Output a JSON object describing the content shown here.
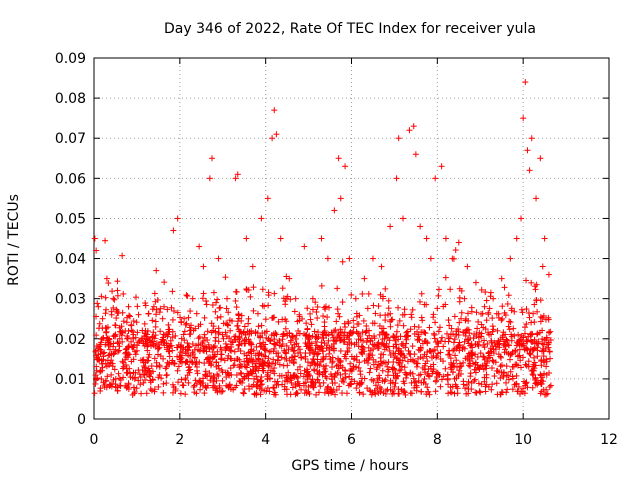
{
  "chart_data": {
    "type": "scatter",
    "title": "Day 346 of 2022, Rate Of TEC Index for receiver yula",
    "xlabel": "GPS time / hours",
    "ylabel": "ROTI / TECUs",
    "xlim": [
      0,
      12
    ],
    "ylim": [
      0,
      0.09
    ],
    "x_ticks": [
      "0",
      "2",
      "4",
      "6",
      "8",
      "10",
      "12"
    ],
    "y_ticks": [
      "0",
      "0.01",
      "0.02",
      "0.03",
      "0.04",
      "0.05",
      "0.06",
      "0.07",
      "0.08",
      "0.09"
    ],
    "grid": true,
    "marker": "+",
    "color": "#ff0000",
    "series": [
      {
        "name": "ROTI",
        "x": [
          0.02,
          0.05,
          0.1,
          0.2,
          0.3,
          0.45,
          0.6,
          0.8,
          1.0,
          1.2,
          1.45,
          1.6,
          1.85,
          1.95,
          2.1,
          2.3,
          2.45,
          2.55,
          2.7,
          2.75,
          2.9,
          3.1,
          3.3,
          3.35,
          3.55,
          3.7,
          3.9,
          4.05,
          4.15,
          4.2,
          4.25,
          4.35,
          4.55,
          4.7,
          4.9,
          5.1,
          5.3,
          5.45,
          5.6,
          5.7,
          5.75,
          5.85,
          5.95,
          6.1,
          6.3,
          6.5,
          6.7,
          6.9,
          7.05,
          7.1,
          7.2,
          7.35,
          7.45,
          7.5,
          7.6,
          7.75,
          7.85,
          7.95,
          8.1,
          8.2,
          8.35,
          8.5,
          8.7,
          8.9,
          9.1,
          9.3,
          9.5,
          9.7,
          9.85,
          9.95,
          10.0,
          10.05,
          10.1,
          10.15,
          10.2,
          10.3,
          10.4,
          10.5,
          10.6,
          0.15,
          0.4,
          0.7,
          0.95,
          1.3,
          1.7,
          2.05,
          2.4,
          2.85,
          3.2,
          3.6,
          3.95,
          4.45,
          4.8,
          5.2,
          5.55,
          6.05,
          6.4,
          6.8,
          7.15,
          7.55,
          7.9,
          8.25,
          8.6,
          9.0,
          9.4,
          9.75,
          10.25,
          10.55,
          0.25,
          0.55,
          0.9,
          1.15,
          1.5,
          1.9,
          2.2,
          2.6,
          3.0,
          3.45,
          3.8,
          4.1,
          4.6,
          5.0,
          5.35,
          5.8,
          6.2,
          6.6,
          7.0,
          7.4,
          7.7,
          8.05,
          8.4,
          8.8,
          9.2,
          9.6,
          9.9,
          10.35,
          10.62
        ],
        "y": [
          0.045,
          0.042,
          0.028,
          0.025,
          0.035,
          0.03,
          0.02,
          0.018,
          0.017,
          0.022,
          0.037,
          0.025,
          0.047,
          0.05,
          0.025,
          0.03,
          0.043,
          0.038,
          0.06,
          0.065,
          0.04,
          0.03,
          0.06,
          0.061,
          0.045,
          0.038,
          0.05,
          0.055,
          0.07,
          0.077,
          0.071,
          0.045,
          0.035,
          0.03,
          0.043,
          0.03,
          0.045,
          0.04,
          0.052,
          0.065,
          0.055,
          0.063,
          0.04,
          0.03,
          0.035,
          0.04,
          0.038,
          0.048,
          0.06,
          0.07,
          0.05,
          0.072,
          0.073,
          0.066,
          0.048,
          0.045,
          0.04,
          0.06,
          0.063,
          0.045,
          0.04,
          0.044,
          0.038,
          0.034,
          0.028,
          0.03,
          0.035,
          0.04,
          0.045,
          0.05,
          0.075,
          0.084,
          0.067,
          0.062,
          0.07,
          0.055,
          0.065,
          0.045,
          0.036,
          0.012,
          0.011,
          0.013,
          0.01,
          0.012,
          0.011,
          0.014,
          0.012,
          0.013,
          0.011,
          0.014,
          0.012,
          0.015,
          0.013,
          0.012,
          0.014,
          0.013,
          0.015,
          0.014,
          0.016,
          0.015,
          0.017,
          0.016,
          0.014,
          0.013,
          0.012,
          0.013,
          0.012,
          0.011,
          0.008,
          0.007,
          0.006,
          0.009,
          0.008,
          0.007,
          0.009,
          0.008,
          0.007,
          0.009,
          0.008,
          0.01,
          0.009,
          0.008,
          0.009,
          0.01,
          0.009,
          0.01,
          0.008,
          0.009,
          0.01,
          0.011,
          0.01,
          0.009,
          0.008,
          0.009,
          0.008,
          0.009,
          0.008
        ]
      }
    ]
  }
}
